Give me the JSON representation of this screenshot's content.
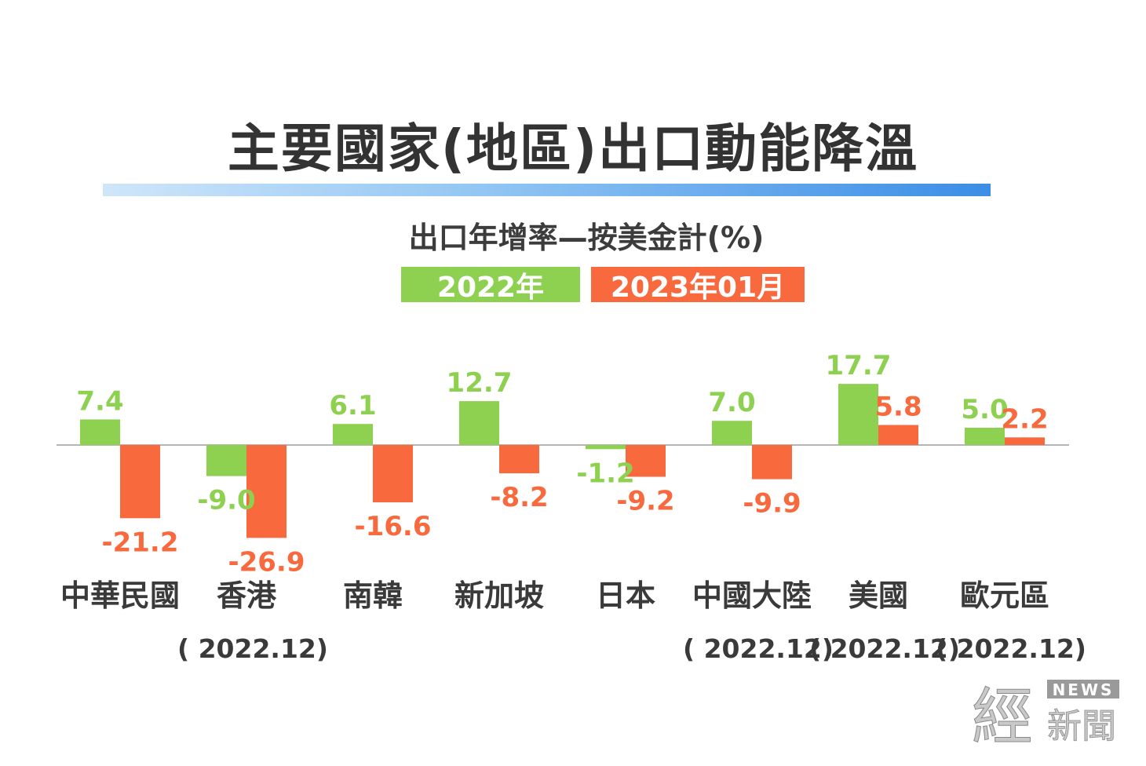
{
  "title": "主要國家(地區)出口動能降溫",
  "colors": {
    "series_2022": "#8ed150",
    "series_2023": "#f86a3e",
    "axis": "#b5b5b5",
    "text": "#3a3a3a"
  },
  "watermark": {
    "big": "經",
    "small": "新聞",
    "tag": "NEWS"
  },
  "chart_data": {
    "type": "bar",
    "title": "出口年增率—按美金計(%)",
    "categories": [
      "中華民國",
      "香港",
      "南韓",
      "新加坡",
      "日本",
      "中國大陸",
      "美國",
      "歐元區"
    ],
    "notes": [
      "",
      "( 2022.12)",
      "",
      "",
      "",
      "( 2022.12)",
      "( 2022.12)",
      "( 2022.12)"
    ],
    "series": [
      {
        "name": "2022年",
        "values": [
          7.4,
          -9.0,
          6.1,
          12.7,
          -1.2,
          7.0,
          17.7,
          5.0
        ]
      },
      {
        "name": "2023年01月",
        "values": [
          -21.2,
          -26.9,
          -16.6,
          -8.2,
          -9.2,
          -9.9,
          5.8,
          2.2
        ]
      }
    ],
    "value_labels": [
      [
        "7.4",
        "-9.0",
        "6.1",
        "12.7",
        "-1.2",
        "7.0",
        "17.7",
        "5.0"
      ],
      [
        "-21.2",
        "-26.9",
        "-16.6",
        "-8.2",
        "-9.2",
        "-9.9",
        "5.8",
        "2.2"
      ]
    ],
    "legend_position": "top-center",
    "grid": false
  }
}
